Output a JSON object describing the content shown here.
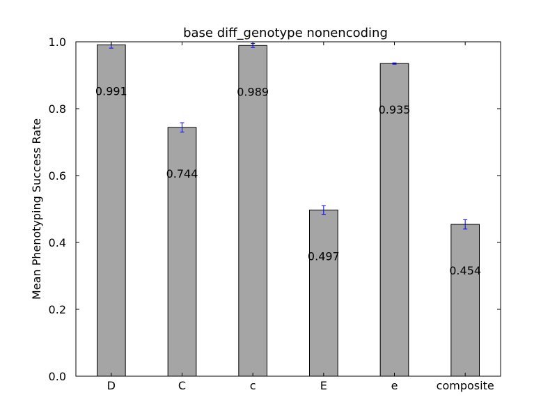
{
  "chart_data": {
    "type": "bar",
    "title": "base diff_genotype nonencoding",
    "xlabel": "",
    "ylabel": "Mean Phenotyping Success Rate",
    "categories": [
      "D",
      "C",
      "c",
      "E",
      "e",
      "composite"
    ],
    "values": [
      0.991,
      0.744,
      0.989,
      0.497,
      0.935,
      0.454
    ],
    "value_labels": [
      "0.991",
      "0.744",
      "0.989",
      "0.497",
      "0.935",
      "0.454"
    ],
    "errors": [
      0.01,
      0.014,
      0.006,
      0.013,
      0.002,
      0.014
    ],
    "ylim": [
      0.0,
      1.0
    ],
    "yticks": [
      0.0,
      0.2,
      0.4,
      0.6,
      0.8,
      1.0
    ],
    "ytick_labels": [
      "0.0",
      "0.2",
      "0.4",
      "0.6",
      "0.8",
      "1.0"
    ],
    "grid": false,
    "legend": "none",
    "colors": {
      "bar_fill": "#a5a5a5",
      "bar_edge": "#000000",
      "error_bar": "#0000ff"
    }
  }
}
